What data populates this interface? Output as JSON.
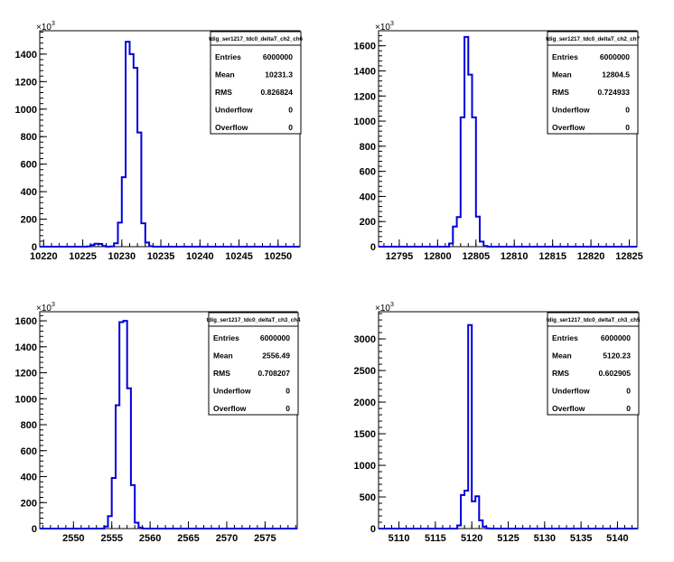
{
  "chart_data": [
    {
      "type": "histogram",
      "title": "tdig_ser1217_tdc0_deltaT_ch2_ch6",
      "exponent_label": "×10",
      "exponent_sup": "3",
      "xlim": [
        10219.5,
        10252.8
      ],
      "ylim": [
        0,
        1570
      ],
      "xticks": [
        "10220",
        "10225",
        "10230",
        "10235",
        "10240",
        "10245",
        "10250"
      ],
      "yticks": [
        "0",
        "200",
        "400",
        "600",
        "800",
        "1000",
        "1200",
        "1400"
      ],
      "bins": [
        {
          "x": 10219.5,
          "y": 0
        },
        {
          "x": 10220.5,
          "y": 0
        },
        {
          "x": 10221.5,
          "y": 0
        },
        {
          "x": 10222.5,
          "y": 0
        },
        {
          "x": 10223.5,
          "y": 0
        },
        {
          "x": 10224.5,
          "y": 0
        },
        {
          "x": 10225.5,
          "y": 2
        },
        {
          "x": 10226.0,
          "y": 12
        },
        {
          "x": 10226.5,
          "y": 22
        },
        {
          "x": 10227.0,
          "y": 20
        },
        {
          "x": 10227.5,
          "y": 5
        },
        {
          "x": 10228.0,
          "y": 0
        },
        {
          "x": 10228.5,
          "y": 2
        },
        {
          "x": 10229.0,
          "y": 25
        },
        {
          "x": 10229.5,
          "y": 175
        },
        {
          "x": 10230.0,
          "y": 505
        },
        {
          "x": 10230.5,
          "y": 1490
        },
        {
          "x": 10231.0,
          "y": 1400
        },
        {
          "x": 10231.5,
          "y": 1300
        },
        {
          "x": 10232.0,
          "y": 830
        },
        {
          "x": 10232.5,
          "y": 170
        },
        {
          "x": 10233.0,
          "y": 30
        },
        {
          "x": 10233.5,
          "y": 3
        },
        {
          "x": 10234.0,
          "y": 0
        }
      ],
      "stats": [
        {
          "label": "Entries",
          "value": "6000000"
        },
        {
          "label": "Mean",
          "value": "10231.3"
        },
        {
          "label": "RMS",
          "value": "0.826824"
        },
        {
          "label": "Underflow",
          "value": "0"
        },
        {
          "label": "Overflow",
          "value": "0"
        }
      ]
    },
    {
      "type": "histogram",
      "title": "tdig_ser1217_tdc0_deltaT_ch2_ch7",
      "exponent_label": "×10",
      "exponent_sup": "3",
      "xlim": [
        12792.3,
        12826.0
      ],
      "ylim": [
        0,
        1720
      ],
      "xticks": [
        "12795",
        "12800",
        "12805",
        "12810",
        "12815",
        "12820",
        "12825"
      ],
      "yticks": [
        "0",
        "200",
        "400",
        "600",
        "800",
        "1000",
        "1200",
        "1400",
        "1600"
      ],
      "bins": [
        {
          "x": 12792.3,
          "y": 0
        },
        {
          "x": 12801.5,
          "y": 25
        },
        {
          "x": 12802.0,
          "y": 160
        },
        {
          "x": 12802.5,
          "y": 235
        },
        {
          "x": 12803.0,
          "y": 1030
        },
        {
          "x": 12803.5,
          "y": 1670
        },
        {
          "x": 12804.0,
          "y": 1370
        },
        {
          "x": 12804.5,
          "y": 1030
        },
        {
          "x": 12805.0,
          "y": 240
        },
        {
          "x": 12805.5,
          "y": 40
        },
        {
          "x": 12806.0,
          "y": 5
        },
        {
          "x": 12806.5,
          "y": 0
        }
      ],
      "stats": [
        {
          "label": "Entries",
          "value": "6000000"
        },
        {
          "label": "Mean",
          "value": "12804.5"
        },
        {
          "label": "RMS",
          "value": "0.724933"
        },
        {
          "label": "Underflow",
          "value": "0"
        },
        {
          "label": "Overflow",
          "value": "0"
        }
      ]
    },
    {
      "type": "histogram",
      "title": "tdig_ser1217_tdc0_deltaT_ch3_ch4",
      "exponent_label": "×10",
      "exponent_sup": "3",
      "xlim": [
        2545.6,
        2579.2
      ],
      "ylim": [
        0,
        1670
      ],
      "xticks": [
        "2550",
        "2555",
        "2560",
        "2565",
        "2570",
        "2575"
      ],
      "yticks": [
        "0",
        "200",
        "400",
        "600",
        "800",
        "1000",
        "1200",
        "1400",
        "1600"
      ],
      "bins": [
        {
          "x": 2545.6,
          "y": 0
        },
        {
          "x": 2554.0,
          "y": 15
        },
        {
          "x": 2554.5,
          "y": 95
        },
        {
          "x": 2555.0,
          "y": 390
        },
        {
          "x": 2555.5,
          "y": 950
        },
        {
          "x": 2556.0,
          "y": 1590
        },
        {
          "x": 2556.5,
          "y": 1600
        },
        {
          "x": 2557.0,
          "y": 1080
        },
        {
          "x": 2557.5,
          "y": 335
        },
        {
          "x": 2558.0,
          "y": 45
        },
        {
          "x": 2558.5,
          "y": 8
        },
        {
          "x": 2559.0,
          "y": 0
        }
      ],
      "stats": [
        {
          "label": "Entries",
          "value": "6000000"
        },
        {
          "label": "Mean",
          "value": "2556.49"
        },
        {
          "label": "RMS",
          "value": "0.708207"
        },
        {
          "label": "Underflow",
          "value": "0"
        },
        {
          "label": "Overflow",
          "value": "0"
        }
      ]
    },
    {
      "type": "histogram",
      "title": "tdig_ser1217_tdc0_deltaT_ch3_ch5",
      "exponent_label": "×10",
      "exponent_sup": "3",
      "xlim": [
        5107.2,
        5142.8
      ],
      "ylim": [
        0,
        3430
      ],
      "xticks": [
        "5110",
        "5115",
        "5120",
        "5125",
        "5130",
        "5135",
        "5140"
      ],
      "yticks": [
        "0",
        "500",
        "1000",
        "1500",
        "2000",
        "2500",
        "3000"
      ],
      "bins": [
        {
          "x": 5107.2,
          "y": 0
        },
        {
          "x": 5118.0,
          "y": 50
        },
        {
          "x": 5118.5,
          "y": 530
        },
        {
          "x": 5119.0,
          "y": 600
        },
        {
          "x": 5119.5,
          "y": 3220
        },
        {
          "x": 5120.0,
          "y": 430
        },
        {
          "x": 5120.5,
          "y": 510
        },
        {
          "x": 5121.0,
          "y": 130
        },
        {
          "x": 5121.5,
          "y": 30
        },
        {
          "x": 5122.0,
          "y": 5
        },
        {
          "x": 5122.5,
          "y": 0
        }
      ],
      "stats": [
        {
          "label": "Entries",
          "value": "6000000"
        },
        {
          "label": "Mean",
          "value": "5120.23"
        },
        {
          "label": "RMS",
          "value": "0.602905"
        },
        {
          "label": "Underflow",
          "value": "0"
        },
        {
          "label": "Overflow",
          "value": "0"
        }
      ]
    }
  ],
  "colors": {
    "histogram_line": "#0000dd",
    "axis": "#000000",
    "background": "#ffffff"
  }
}
